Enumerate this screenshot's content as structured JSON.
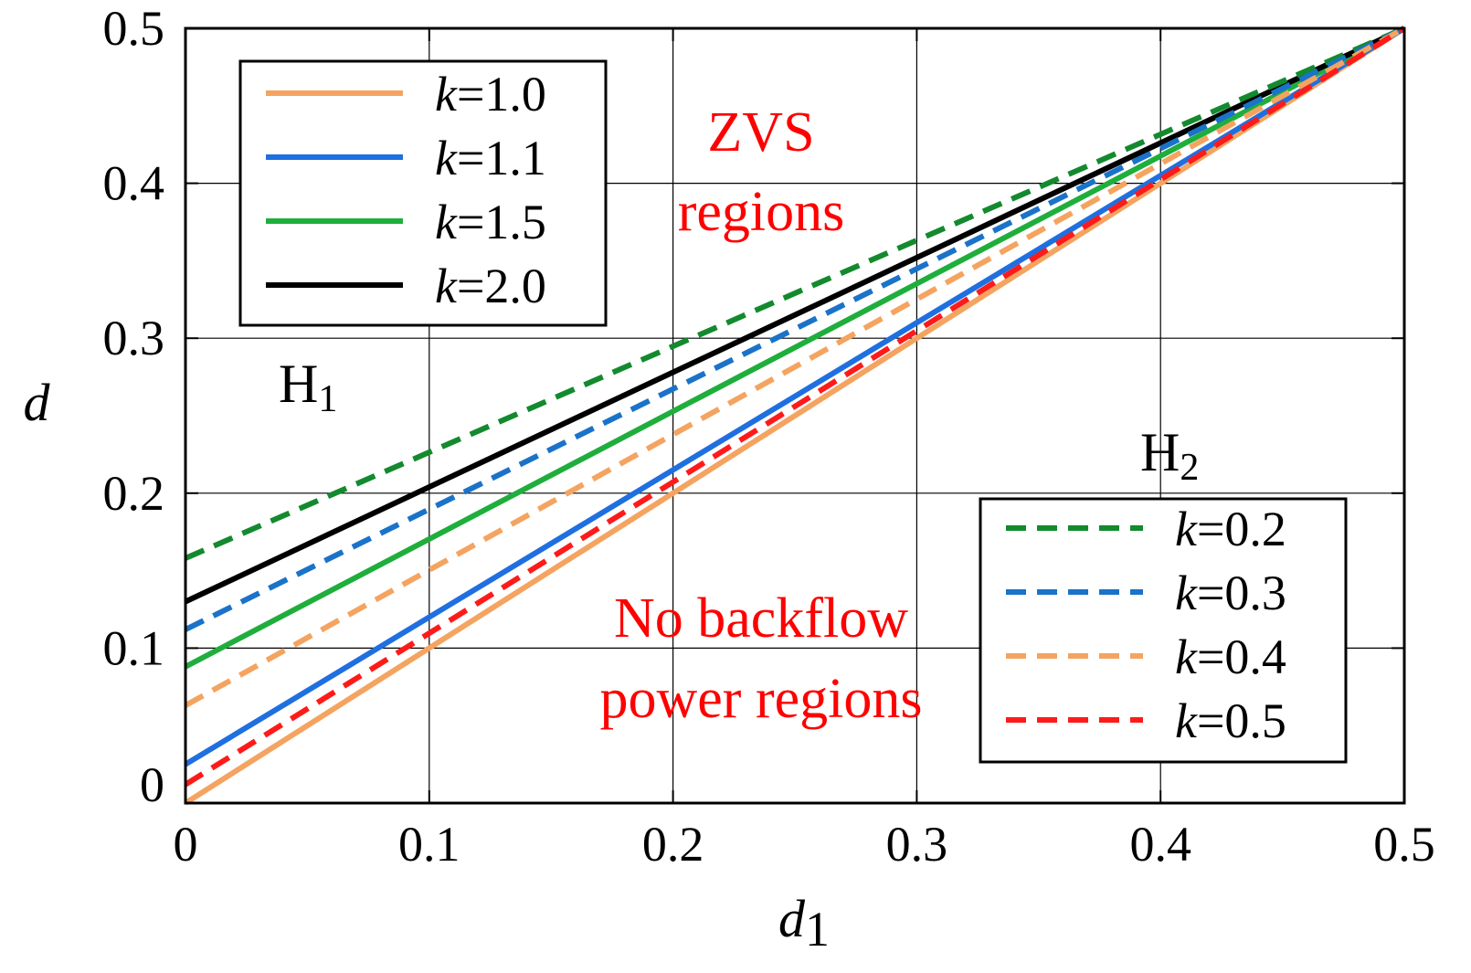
{
  "chart_data": {
    "type": "line",
    "xlabel": "d",
    "xlabel_sub": "1",
    "ylabel": "d",
    "xlim": [
      0,
      0.5
    ],
    "ylim": [
      0,
      0.5
    ],
    "grid": true,
    "x_ticks": [
      "0",
      "0.1",
      "0.2",
      "0.3",
      "0.4",
      "0.5"
    ],
    "y_ticks": [
      "0",
      "0.1",
      "0.2",
      "0.3",
      "0.4",
      "0.5"
    ],
    "x_tick_values": [
      0,
      0.1,
      0.2,
      0.3,
      0.4,
      0.5
    ],
    "y_tick_values": [
      0,
      0.1,
      0.2,
      0.3,
      0.4,
      0.5
    ],
    "series": [
      {
        "name": "k=1.0",
        "k": "1.0",
        "color": "#f4a460",
        "style": "solid",
        "x": [
          0,
          0.5
        ],
        "y": [
          0.0,
          0.5
        ]
      },
      {
        "name": "k=1.1",
        "k": "1.1",
        "color": "#1f6fe0",
        "style": "solid",
        "x": [
          0,
          0.5
        ],
        "y": [
          0.025,
          0.5
        ]
      },
      {
        "name": "k=1.5",
        "k": "1.5",
        "color": "#1fae3c",
        "style": "solid",
        "x": [
          0,
          0.5
        ],
        "y": [
          0.088,
          0.5
        ]
      },
      {
        "name": "k=2.0",
        "k": "2.0",
        "color": "#000000",
        "style": "solid",
        "x": [
          0,
          0.5
        ],
        "y": [
          0.13,
          0.5
        ]
      },
      {
        "name": "k=0.2",
        "k": "0.2",
        "color": "#138a2e",
        "style": "dashed",
        "x": [
          0,
          0.5
        ],
        "y": [
          0.158,
          0.5
        ]
      },
      {
        "name": "k=0.3",
        "k": "0.3",
        "color": "#1a73c9",
        "style": "dashed",
        "x": [
          0,
          0.5
        ],
        "y": [
          0.112,
          0.5
        ]
      },
      {
        "name": "k=0.4",
        "k": "0.4",
        "color": "#f4a460",
        "style": "dashed",
        "x": [
          0,
          0.5
        ],
        "y": [
          0.063,
          0.5
        ]
      },
      {
        "name": "k=0.5",
        "k": "0.5",
        "color": "#ff1a1a",
        "style": "dashed",
        "x": [
          0,
          0.5
        ],
        "y": [
          0.012,
          0.5
        ]
      }
    ],
    "legend_solid": [
      "k=1.0",
      "k=1.1",
      "k=1.5",
      "k=2.0"
    ],
    "legend_dashed": [
      "k=0.2",
      "k=0.3",
      "k=0.4",
      "k=0.5"
    ],
    "legend_prefix": "k",
    "legend_eq": "=",
    "annotations": {
      "zvs_line1": "ZVS",
      "zvs_line2": "regions",
      "nobackflow_line1": "No backflow",
      "nobackflow_line2": "power regions",
      "h1_main": "H",
      "h1_sub": "1",
      "h2_main": "H",
      "h2_sub": "2"
    }
  }
}
